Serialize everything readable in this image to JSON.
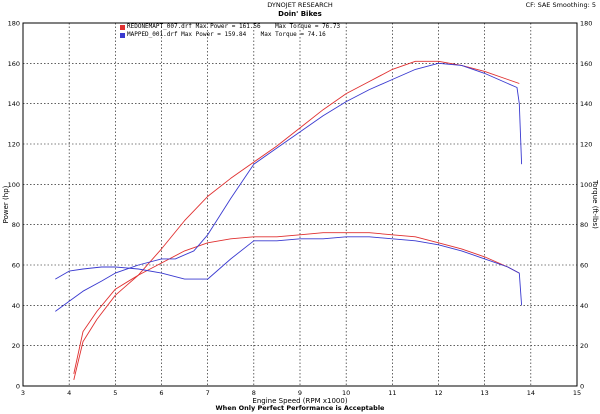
{
  "header": {
    "publisher": "DYNOJET RESEARCH",
    "title": "Doin' Bikes",
    "correction": "CF: SAE  Smoothing: 5"
  },
  "footer": {
    "tagline": "When Only Perfect Performance is Acceptable"
  },
  "chart_data": {
    "type": "line",
    "xlabel": "Engine Speed (RPM x1000)",
    "ylabel_left": "Power (hp)",
    "ylabel_right": "Torque (ft-lbs)",
    "xlim": [
      3,
      15
    ],
    "ylim_left": [
      0,
      180
    ],
    "ylim_right": [
      0,
      180
    ],
    "x_ticks": [
      "3",
      "4",
      "5",
      "6",
      "7",
      "8",
      "9",
      "10",
      "11",
      "12",
      "13",
      "14",
      "15"
    ],
    "y_ticks": [
      "0",
      "20",
      "40",
      "60",
      "80",
      "100",
      "120",
      "140",
      "160",
      "180"
    ],
    "grid": true,
    "legend_position": "top-left",
    "legend": [
      {
        "text": "REDONEMAPT_007.drf Max Power = 161.56    Max Torque = 76.73",
        "color": "#e03030"
      },
      {
        "text": "MAPPED_001.drf Max Power = 159.84    Max Torque = 74.16",
        "color": "#3a3ad0"
      }
    ],
    "series": [
      {
        "run": "REDONEMAPT_007",
        "measure": "power",
        "color": "#e03030",
        "x": [
          4.1,
          4.3,
          4.6,
          5.0,
          5.5,
          6.0,
          6.5,
          7.0,
          7.5,
          8.0,
          8.5,
          9.0,
          9.5,
          10.0,
          10.5,
          11.0,
          11.5,
          12.0,
          12.5,
          13.0,
          13.5,
          13.75
        ],
        "y": [
          3,
          22,
          33,
          45,
          55,
          68,
          82,
          94,
          103,
          111,
          119,
          128,
          137,
          145,
          151,
          157,
          161,
          161,
          159,
          156,
          152,
          150
        ]
      },
      {
        "run": "REDONEMAPT_007",
        "measure": "torque",
        "color": "#e03030",
        "x": [
          4.1,
          4.3,
          4.6,
          5.0,
          5.5,
          6.0,
          6.5,
          7.0,
          7.5,
          8.0,
          8.5,
          9.0,
          9.5,
          10.0,
          10.5,
          11.0,
          11.5,
          12.0,
          12.5,
          13.0,
          13.5,
          13.75
        ],
        "y": [
          6,
          27,
          37,
          48,
          55,
          61,
          67,
          71,
          73,
          74,
          74,
          75,
          76,
          76,
          76,
          75,
          74,
          71,
          68,
          64,
          59,
          56
        ]
      },
      {
        "run": "MAPPED_001",
        "measure": "power",
        "color": "#3a3ad0",
        "x": [
          3.7,
          4.0,
          4.3,
          4.7,
          5.0,
          5.5,
          6.0,
          6.3,
          6.7,
          7.0,
          7.5,
          8.0,
          8.5,
          9.0,
          9.5,
          10.0,
          10.5,
          11.0,
          11.5,
          12.0,
          12.5,
          13.0,
          13.5,
          13.7,
          13.75,
          13.8
        ],
        "y": [
          37,
          42,
          47,
          52,
          56,
          60,
          63,
          63,
          67,
          75,
          93,
          110,
          118,
          126,
          134,
          141,
          147,
          152,
          157,
          160,
          159,
          155,
          150,
          148,
          140,
          110
        ]
      },
      {
        "run": "MAPPED_001",
        "measure": "torque",
        "color": "#3a3ad0",
        "x": [
          3.7,
          4.0,
          4.3,
          4.7,
          5.0,
          5.5,
          6.0,
          6.5,
          7.0,
          7.5,
          8.0,
          8.5,
          9.0,
          9.5,
          10.0,
          10.5,
          11.0,
          11.5,
          12.0,
          12.5,
          13.0,
          13.5,
          13.75,
          13.8
        ],
        "y": [
          53,
          57,
          58,
          59,
          59,
          58,
          56,
          53,
          53,
          63,
          72,
          72,
          73,
          73,
          74,
          74,
          73,
          72,
          70,
          67,
          63,
          59,
          56,
          40
        ]
      }
    ]
  }
}
